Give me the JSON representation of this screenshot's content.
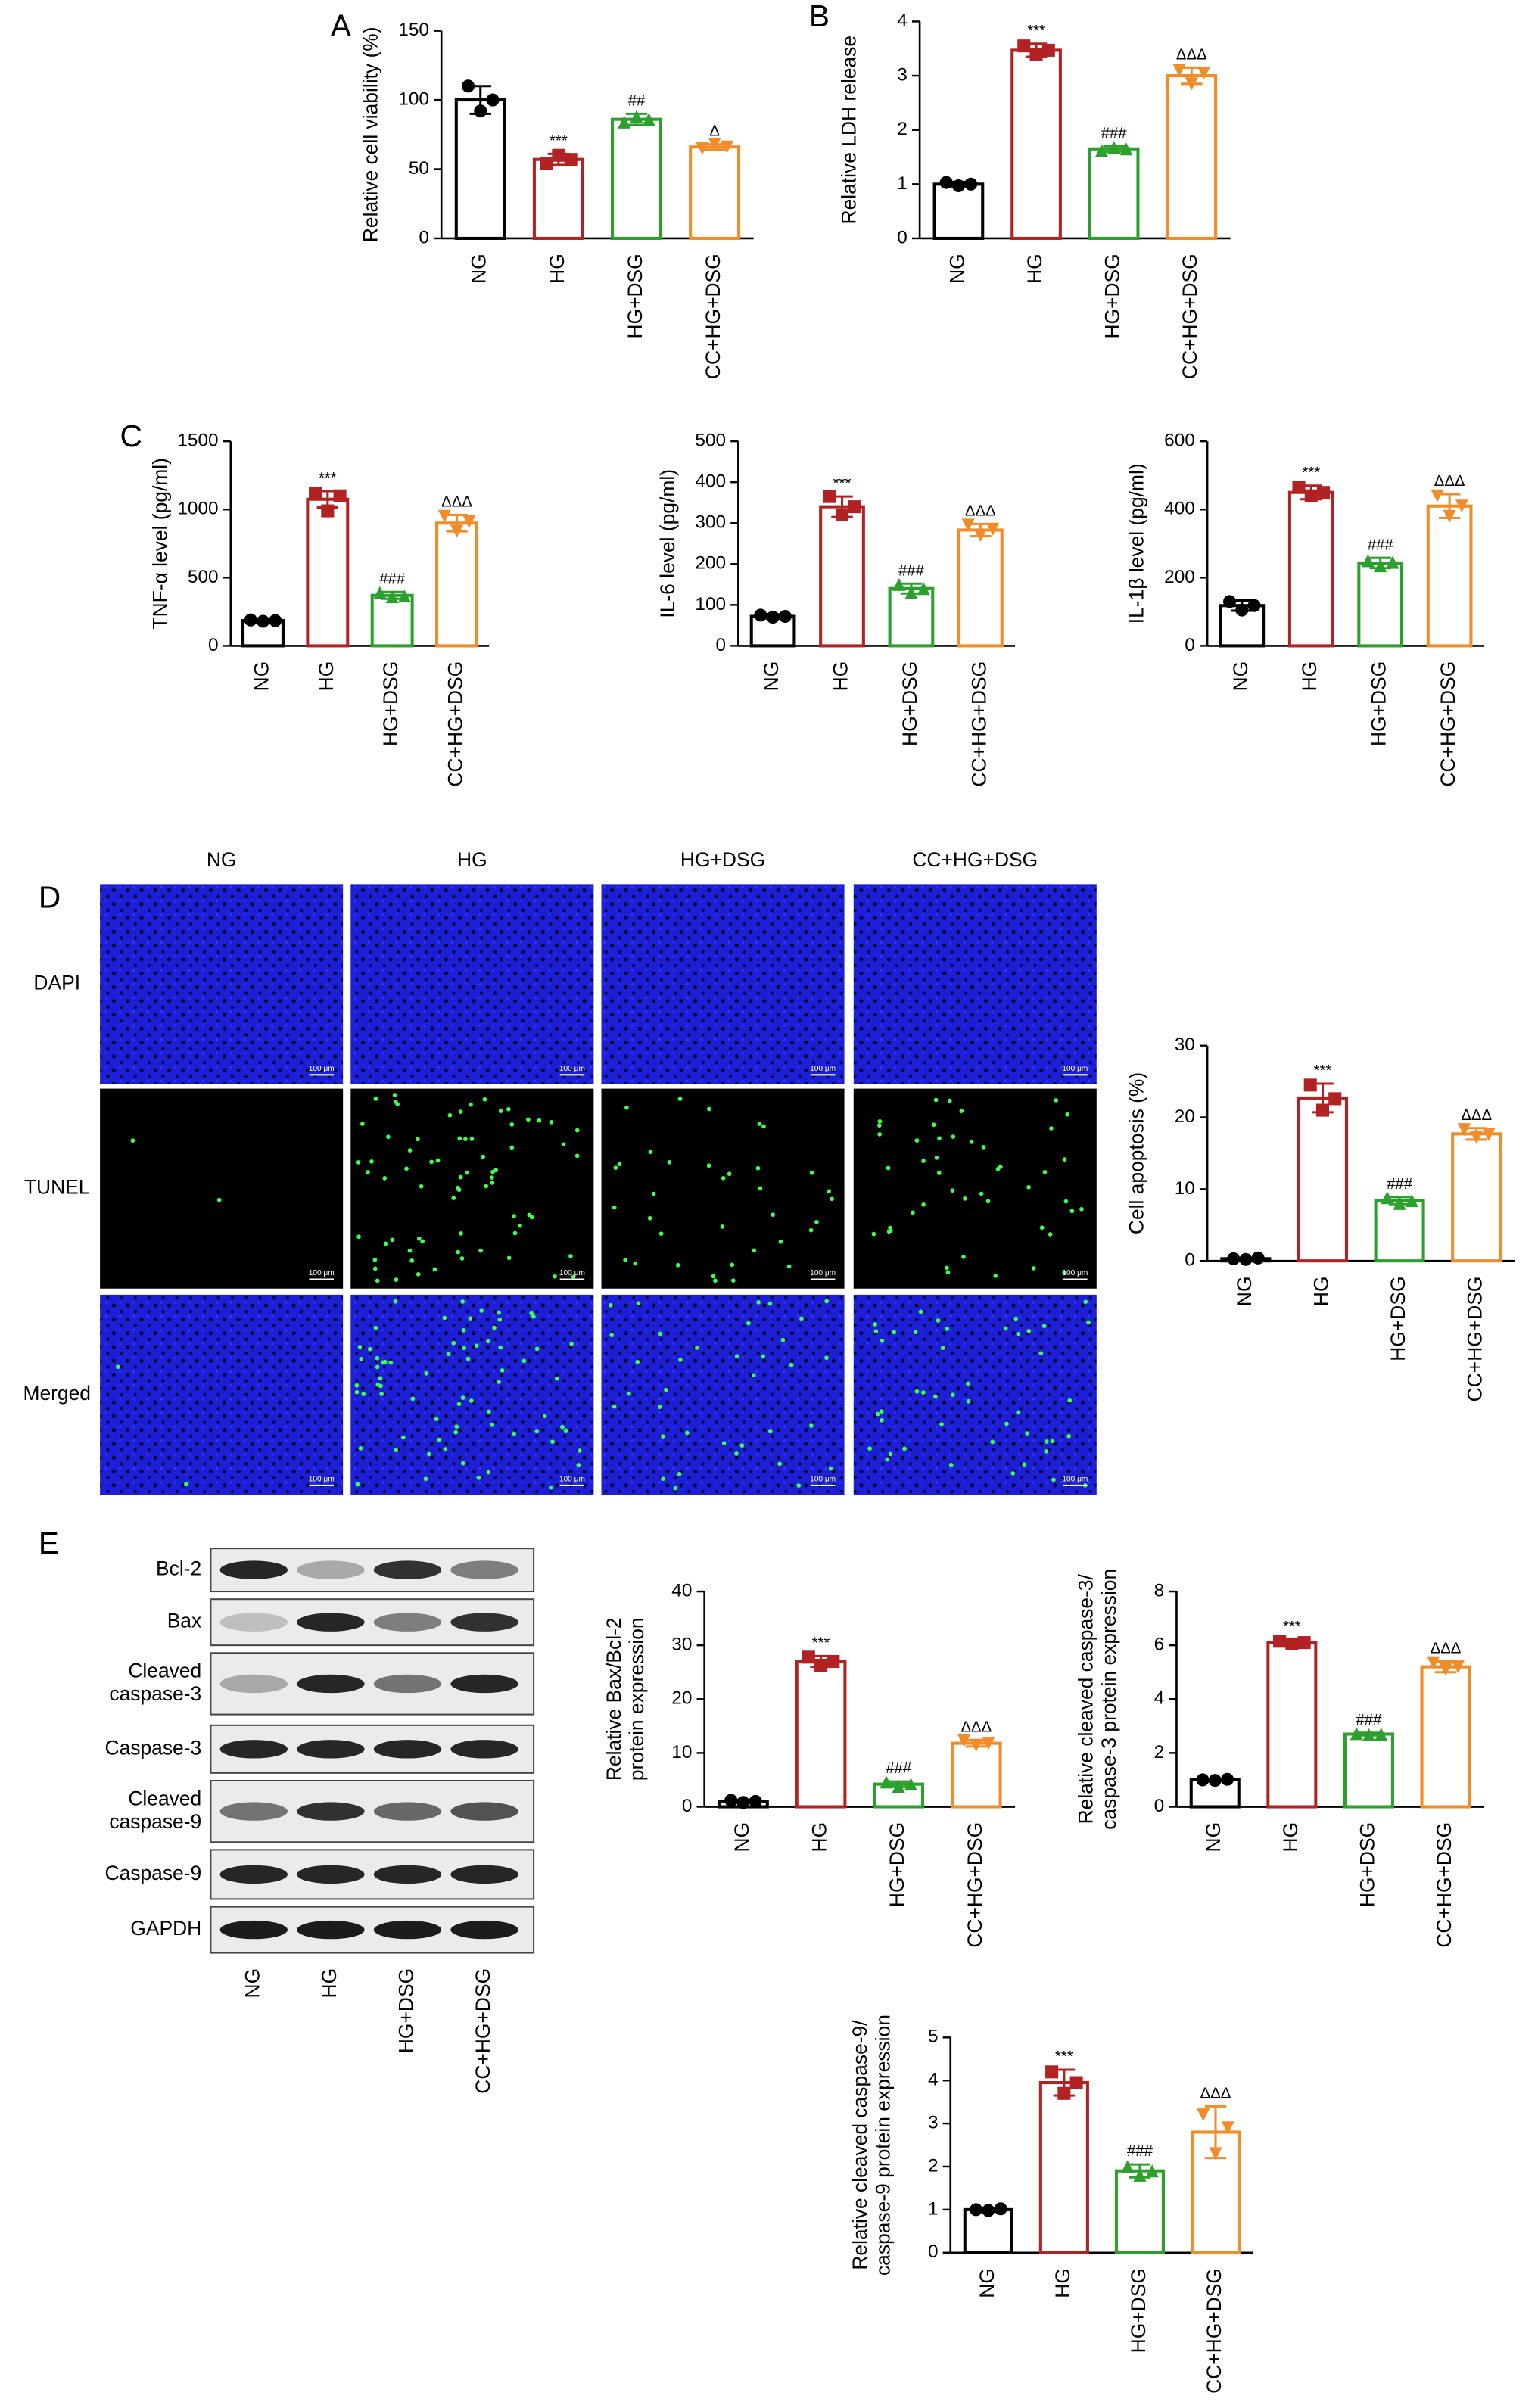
{
  "chart_data": [
    {
      "type": "bar",
      "panel": "A",
      "ylabel": "Relative cell viability (%)",
      "categories": [
        "NG",
        "HG",
        "HG+DSG",
        "CC+HG+DSG"
      ],
      "values": [
        100,
        57,
        86,
        66
      ],
      "errors": [
        10,
        4,
        4,
        2
      ],
      "points": [
        [
          110,
          92,
          100
        ],
        [
          54,
          60,
          57
        ],
        [
          84,
          88,
          86
        ],
        [
          65,
          68,
          66
        ]
      ],
      "annotations": [
        null,
        "***",
        "##",
        "Δ"
      ],
      "colors": [
        "#000000",
        "#b22222",
        "#2ca02c",
        "#f28c28"
      ],
      "ylim": [
        0,
        150
      ],
      "yticks": [
        0,
        50,
        100,
        150
      ]
    },
    {
      "type": "bar",
      "panel": "B",
      "ylabel": "Relative LDH release",
      "categories": [
        "NG",
        "HG",
        "HG+DSG",
        "CC+HG+DSG"
      ],
      "values": [
        1.0,
        3.47,
        1.65,
        3.0
      ],
      "errors": [
        0.04,
        0.12,
        0.05,
        0.15
      ],
      "points": [
        [
          1.03,
          0.97,
          1.0
        ],
        [
          3.55,
          3.4,
          3.47
        ],
        [
          1.62,
          1.68,
          1.65
        ],
        [
          3.1,
          2.85,
          3.05
        ]
      ],
      "annotations": [
        null,
        "***",
        "###",
        "ΔΔΔ"
      ],
      "colors": [
        "#000000",
        "#b22222",
        "#2ca02c",
        "#f28c28"
      ],
      "ylim": [
        0,
        4
      ],
      "yticks": [
        0,
        1,
        2,
        3,
        4
      ]
    },
    {
      "type": "bar",
      "panel": "C",
      "ylabel": "TNF-α level (pg/ml)",
      "categories": [
        "NG",
        "HG",
        "HG+DSG",
        "CC+HG+DSG"
      ],
      "values": [
        185,
        1075,
        370,
        900
      ],
      "errors": [
        15,
        60,
        25,
        60
      ],
      "points": [
        [
          190,
          180,
          185
        ],
        [
          1120,
          990,
          1100
        ],
        [
          390,
          360,
          365
        ],
        [
          950,
          840,
          910
        ]
      ],
      "annotations": [
        null,
        "***",
        "###",
        "ΔΔΔ"
      ],
      "colors": [
        "#000000",
        "#b22222",
        "#2ca02c",
        "#f28c28"
      ],
      "ylim": [
        0,
        1500
      ],
      "yticks": [
        0,
        500,
        1000,
        1500
      ]
    },
    {
      "type": "bar",
      "ylabel": "IL-6 level (pg/ml)",
      "categories": [
        "NG",
        "HG",
        "HG+DSG",
        "CC+HG+DSG"
      ],
      "values": [
        72,
        340,
        140,
        283
      ],
      "errors": [
        5,
        25,
        12,
        15
      ],
      "points": [
        [
          75,
          70,
          72
        ],
        [
          365,
          320,
          340
        ],
        [
          150,
          130,
          140
        ],
        [
          295,
          270,
          285
        ]
      ],
      "annotations": [
        null,
        "***",
        "###",
        "ΔΔΔ"
      ],
      "colors": [
        "#000000",
        "#b22222",
        "#2ca02c",
        "#f28c28"
      ],
      "ylim": [
        0,
        500
      ],
      "yticks": [
        0,
        100,
        200,
        300,
        400,
        500
      ]
    },
    {
      "type": "bar",
      "ylabel": "IL-1β level (pg/ml)",
      "categories": [
        "NG",
        "HG",
        "HG+DSG",
        "CC+HG+DSG"
      ],
      "values": [
        118,
        450,
        243,
        410
      ],
      "errors": [
        15,
        20,
        15,
        35
      ],
      "points": [
        [
          130,
          105,
          118
        ],
        [
          465,
          440,
          450
        ],
        [
          250,
          235,
          245
        ],
        [
          440,
          380,
          410
        ]
      ],
      "annotations": [
        null,
        "***",
        "###",
        "ΔΔΔ"
      ],
      "colors": [
        "#000000",
        "#b22222",
        "#2ca02c",
        "#f28c28"
      ],
      "ylim": [
        0,
        600
      ],
      "yticks": [
        0,
        200,
        400,
        600
      ]
    },
    {
      "type": "bar",
      "ylabel": "Cell apoptosis (%)",
      "categories": [
        "NG",
        "HG",
        "HG+DSG",
        "CC+HG+DSG"
      ],
      "values": [
        0.3,
        22.7,
        8.4,
        17.7
      ],
      "errors": [
        0.1,
        2,
        0.5,
        0.8
      ],
      "points": [
        [
          0.3,
          0.2,
          0.4
        ],
        [
          24.5,
          21,
          22.6
        ],
        [
          8.8,
          8.0,
          8.4
        ],
        [
          18.3,
          17.2,
          17.6
        ]
      ],
      "annotations": [
        null,
        "***",
        "###",
        "ΔΔΔ"
      ],
      "colors": [
        "#000000",
        "#b22222",
        "#2ca02c",
        "#f28c28"
      ],
      "ylim": [
        0,
        30
      ],
      "yticks": [
        0,
        10,
        20,
        30
      ]
    },
    {
      "type": "bar",
      "ylabel": [
        "Relative Bax/Bcl-2",
        "protein expression"
      ],
      "categories": [
        "NG",
        "HG",
        "HG+DSG",
        "CC+HG+DSG"
      ],
      "values": [
        1.0,
        27,
        4.2,
        11.8
      ],
      "errors": [
        0.3,
        1,
        0.5,
        0.6
      ],
      "points": [
        [
          1.2,
          0.8,
          1.0
        ],
        [
          27.8,
          26.3,
          27
        ],
        [
          4.6,
          3.8,
          4.2
        ],
        [
          12.3,
          11.4,
          11.8
        ]
      ],
      "annotations": [
        null,
        "***",
        "###",
        "ΔΔΔ"
      ],
      "colors": [
        "#000000",
        "#b22222",
        "#2ca02c",
        "#f28c28"
      ],
      "ylim": [
        0,
        40
      ],
      "yticks": [
        0,
        10,
        20,
        30,
        40
      ]
    },
    {
      "type": "bar",
      "ylabel": [
        "Relative cleaved caspase-3/",
        "caspase-3 protein expression"
      ],
      "categories": [
        "NG",
        "HG",
        "HG+DSG",
        "CC+HG+DSG"
      ],
      "values": [
        1.0,
        6.1,
        2.7,
        5.2
      ],
      "errors": [
        0.03,
        0.1,
        0.05,
        0.2
      ],
      "points": [
        [
          1.0,
          0.98,
          1.02
        ],
        [
          6.15,
          6.05,
          6.1
        ],
        [
          2.72,
          2.68,
          2.7
        ],
        [
          5.35,
          5.1,
          5.2
        ]
      ],
      "annotations": [
        null,
        "***",
        "###",
        "ΔΔΔ"
      ],
      "colors": [
        "#000000",
        "#b22222",
        "#2ca02c",
        "#f28c28"
      ],
      "ylim": [
        0,
        8
      ],
      "yticks": [
        0,
        2,
        4,
        6,
        8
      ]
    },
    {
      "type": "bar",
      "ylabel": [
        "Relative cleaved caspase-9/",
        "caspase-9 protein expression"
      ],
      "categories": [
        "NG",
        "HG",
        "HG+DSG",
        "CC+HG+DSG"
      ],
      "values": [
        1.0,
        3.95,
        1.9,
        2.8
      ],
      "errors": [
        0.03,
        0.3,
        0.15,
        0.6
      ],
      "points": [
        [
          1.0,
          0.98,
          1.02
        ],
        [
          4.2,
          3.7,
          3.95
        ],
        [
          2.0,
          1.8,
          1.9
        ],
        [
          3.2,
          2.3,
          2.9
        ]
      ],
      "annotations": [
        null,
        "***",
        "###",
        "ΔΔΔ"
      ],
      "colors": [
        "#000000",
        "#b22222",
        "#2ca02c",
        "#f28c28"
      ],
      "ylim": [
        0,
        5
      ],
      "yticks": [
        0,
        1,
        2,
        3,
        4,
        5
      ]
    }
  ],
  "microscopy": {
    "panel": "D",
    "columns": [
      "NG",
      "HG",
      "HG+DSG",
      "CC+HG+DSG"
    ],
    "rows": [
      "DAPI",
      "TUNEL",
      "Merged"
    ],
    "scale_bar": "100 μm"
  },
  "western_blot": {
    "panel": "E",
    "proteins": [
      [
        "Bcl-2"
      ],
      [
        "Bax"
      ],
      [
        "Cleaved",
        "caspase-3"
      ],
      [
        "Caspase-3"
      ],
      [
        "Cleaved",
        "caspase-9"
      ],
      [
        "Caspase-9"
      ],
      [
        "GAPDH"
      ]
    ],
    "lanes": [
      "NG",
      "HG",
      "HG+DSG",
      "CC+HG+DSG"
    ]
  }
}
